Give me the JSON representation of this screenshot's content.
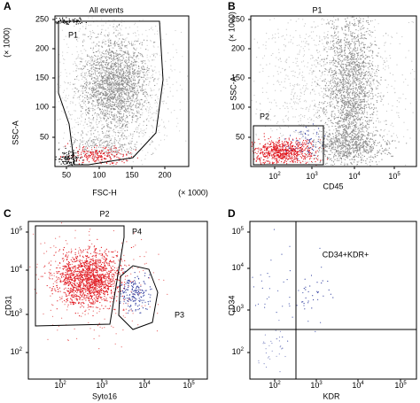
{
  "panels": [
    {
      "letter": "A",
      "title": "All events",
      "y_label": "SSC-A",
      "y_unit": "(× 1000)",
      "x_label": "FSC-H",
      "x_unit": "(× 1000)",
      "yticks": [
        "250",
        "200",
        "150",
        "100",
        "50"
      ],
      "xticks": [
        "50",
        "100",
        "150",
        "200"
      ],
      "gates": [
        "P1"
      ]
    },
    {
      "letter": "B",
      "title": "P1",
      "y_label": "SSC-A",
      "y_unit": "(× 1000)",
      "x_label": "CD45",
      "yticks": [
        "250",
        "200",
        "150",
        "100",
        "50"
      ],
      "xticks": [
        [
          "10",
          "2"
        ],
        [
          "10",
          "3"
        ],
        [
          "10",
          "4"
        ],
        [
          "10",
          "5"
        ]
      ],
      "gates": [
        "P2"
      ]
    },
    {
      "letter": "C",
      "title": "P2",
      "y_label": "CD31",
      "x_label": "Syto16",
      "yticks": [
        [
          "10",
          "5"
        ],
        [
          "10",
          "4"
        ],
        [
          "10",
          "3"
        ],
        [
          "10",
          "2"
        ]
      ],
      "xticks": [
        [
          "10",
          "2"
        ],
        [
          "10",
          "3"
        ],
        [
          "10",
          "4"
        ],
        [
          "10",
          "5"
        ]
      ],
      "gates": [
        "P4",
        "P3"
      ]
    },
    {
      "letter": "D",
      "title": "CD34+KDR+",
      "y_label": "CD34",
      "x_label": "KDR",
      "yticks": [
        [
          "10",
          "5"
        ],
        [
          "10",
          "4"
        ],
        [
          "10",
          "3"
        ],
        [
          "10",
          "2"
        ]
      ],
      "xticks": [
        [
          "10",
          "2"
        ],
        [
          "10",
          "3"
        ],
        [
          "10",
          "4"
        ],
        [
          "10",
          "5"
        ]
      ]
    }
  ]
}
